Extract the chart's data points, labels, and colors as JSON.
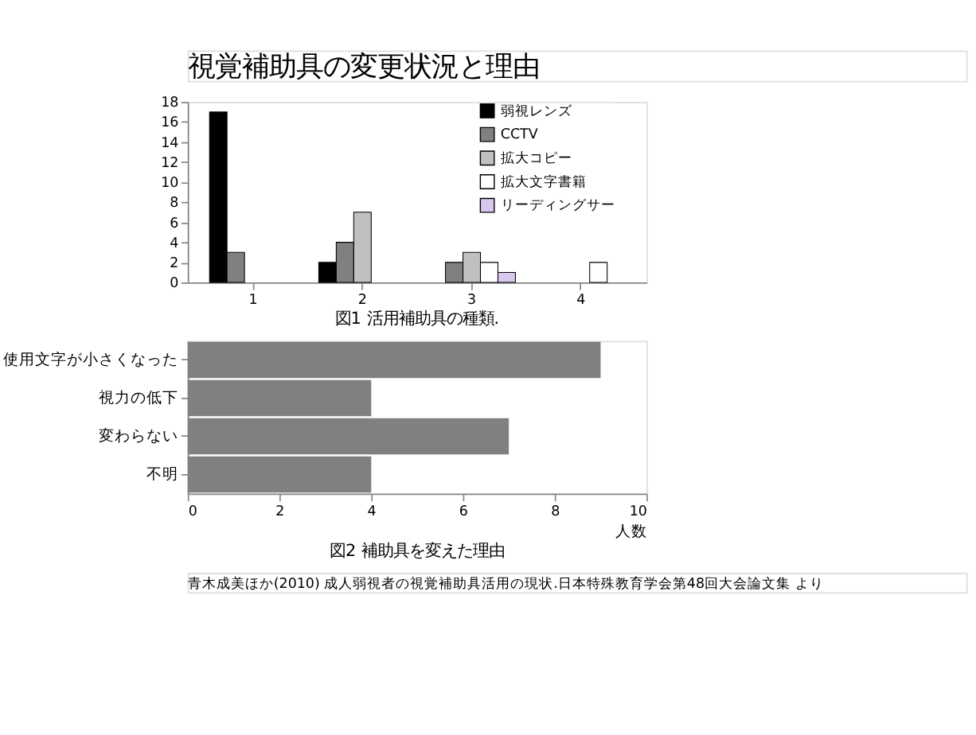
{
  "chart_data": [
    {
      "type": "bar",
      "title": "図1 活用補助具の種類.",
      "annotations": [
        "視覚補助具の変更状況と理由"
      ],
      "categories": [
        "1",
        "2",
        "3",
        "4"
      ],
      "series": [
        {
          "name": "弱視レンズ",
          "color": "#000000",
          "values": [
            17,
            2,
            0,
            null
          ]
        },
        {
          "name": "CCTV",
          "color": "#808080",
          "values": [
            3,
            4,
            2,
            null
          ]
        },
        {
          "name": "拡大コピー",
          "color": "#c0c0c0",
          "values": [
            0,
            7,
            3,
            null
          ]
        },
        {
          "name": "拡大文字書籍",
          "color": "#ffffff",
          "values": [
            0,
            0,
            2,
            2
          ]
        },
        {
          "name": "リーディングサー",
          "color": "#d8c8f0",
          "values": [
            0,
            0,
            1,
            0
          ]
        }
      ],
      "ylim": [
        0,
        18
      ],
      "yticks": [
        0,
        2,
        4,
        6,
        8,
        10,
        12,
        14,
        16,
        18
      ],
      "grid": false,
      "legend": "top right"
    },
    {
      "type": "bar",
      "orientation": "horizontal",
      "title": "図2 補助具を変えた理由",
      "xlabel": "人数",
      "annotations": [
        "青木成美ほか(2010) 成人弱視者の視覚補助具活用の現状.日本特殊教育学会第48回大会論文集 より"
      ],
      "categories": [
        "使用文字が小さくなった",
        "視力の低下",
        "変わらない",
        "不明"
      ],
      "values": [
        9,
        4,
        7,
        4
      ],
      "color": "#808080",
      "xlim": [
        0,
        10
      ],
      "xticks": [
        0,
        2,
        4,
        6,
        8,
        10
      ],
      "grid": false
    }
  ]
}
